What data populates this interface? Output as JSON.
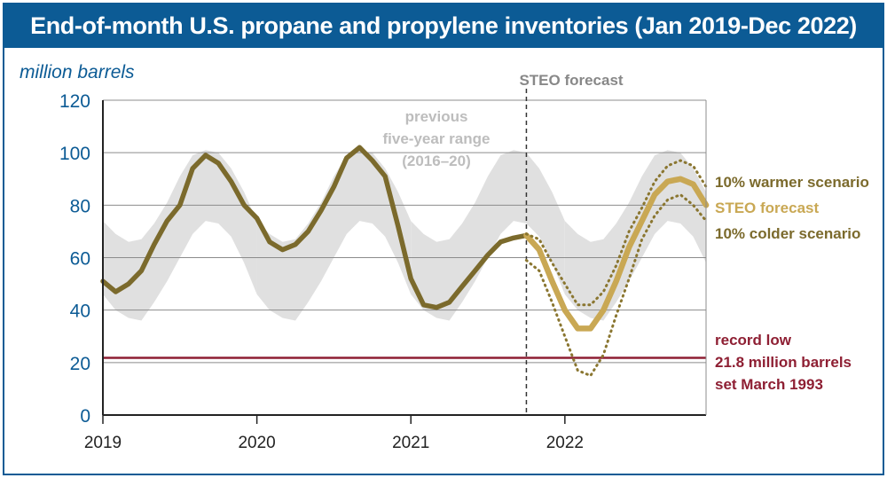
{
  "chart_data": {
    "type": "line",
    "title": "End-of-month U.S. propane and propylene inventories (Jan 2019-Dec 2022)",
    "ylabel": "million barrels",
    "xlabel": "",
    "ylim": [
      0,
      120
    ],
    "yticks": [
      "0",
      "20",
      "40",
      "60",
      "80",
      "100",
      "120"
    ],
    "xticks": [
      "2019",
      "2020",
      "2021",
      "2022"
    ],
    "xlim_years": [
      2019.0,
      2022.9167
    ],
    "grid": true,
    "series": [
      {
        "name": "",
        "role": "historical",
        "color": "#7b6a2c",
        "points": [
          [
            2019.0,
            51
          ],
          [
            2019.083,
            47
          ],
          [
            2019.167,
            50
          ],
          [
            2019.25,
            55
          ],
          [
            2019.333,
            65
          ],
          [
            2019.417,
            74
          ],
          [
            2019.5,
            80
          ],
          [
            2019.583,
            94
          ],
          [
            2019.667,
            99
          ],
          [
            2019.75,
            96
          ],
          [
            2019.833,
            89
          ],
          [
            2019.917,
            80
          ],
          [
            2020.0,
            75
          ],
          [
            2020.083,
            66
          ],
          [
            2020.167,
            63
          ],
          [
            2020.25,
            65
          ],
          [
            2020.333,
            70
          ],
          [
            2020.417,
            78
          ],
          [
            2020.5,
            87
          ],
          [
            2020.583,
            98
          ],
          [
            2020.667,
            102
          ],
          [
            2020.75,
            97
          ],
          [
            2020.833,
            91
          ],
          [
            2020.917,
            72
          ],
          [
            2021.0,
            52
          ],
          [
            2021.083,
            42
          ],
          [
            2021.167,
            41
          ],
          [
            2021.25,
            43
          ],
          [
            2021.333,
            49
          ],
          [
            2021.417,
            55
          ],
          [
            2021.5,
            61
          ],
          [
            2021.583,
            66
          ],
          [
            2021.667,
            67.5
          ],
          [
            2021.75,
            68.5
          ]
        ]
      },
      {
        "name": "STEO forecast",
        "role": "forecast",
        "color": "#c9a854",
        "points": [
          [
            2021.75,
            68.5
          ],
          [
            2021.833,
            63
          ],
          [
            2021.917,
            51
          ],
          [
            2022.0,
            40
          ],
          [
            2022.083,
            33
          ],
          [
            2022.167,
            33
          ],
          [
            2022.25,
            40
          ],
          [
            2022.333,
            51
          ],
          [
            2022.417,
            64
          ],
          [
            2022.5,
            74
          ],
          [
            2022.583,
            84
          ],
          [
            2022.667,
            89
          ],
          [
            2022.75,
            90
          ],
          [
            2022.833,
            88
          ],
          [
            2022.917,
            80
          ]
        ]
      },
      {
        "name": "10% warmer scenario",
        "role": "warmer",
        "color": "#8a7630",
        "points": [
          [
            2021.75,
            69
          ],
          [
            2021.833,
            67
          ],
          [
            2021.917,
            58
          ],
          [
            2022.0,
            50
          ],
          [
            2022.083,
            42
          ],
          [
            2022.167,
            42
          ],
          [
            2022.25,
            47
          ],
          [
            2022.333,
            57
          ],
          [
            2022.417,
            70
          ],
          [
            2022.5,
            79
          ],
          [
            2022.583,
            89
          ],
          [
            2022.667,
            95
          ],
          [
            2022.75,
            97
          ],
          [
            2022.833,
            95
          ],
          [
            2022.917,
            87
          ]
        ]
      },
      {
        "name": "10% colder scenario",
        "role": "colder",
        "color": "#8a7630",
        "points": [
          [
            2021.75,
            59
          ],
          [
            2021.833,
            55
          ],
          [
            2021.917,
            43
          ],
          [
            2022.0,
            30
          ],
          [
            2022.083,
            17
          ],
          [
            2022.167,
            15
          ],
          [
            2022.25,
            23
          ],
          [
            2022.333,
            38
          ],
          [
            2022.417,
            52
          ],
          [
            2022.5,
            67
          ],
          [
            2022.583,
            76
          ],
          [
            2022.667,
            82
          ],
          [
            2022.75,
            84
          ],
          [
            2022.833,
            80
          ],
          [
            2022.917,
            74
          ]
        ]
      }
    ],
    "range_band": {
      "label_lines": [
        "previous",
        "five-year range",
        "(2016–20)"
      ],
      "color": "#e0e0e0",
      "upper": [
        [
          2019.0,
          74
        ],
        [
          2019.083,
          69
        ],
        [
          2019.167,
          66
        ],
        [
          2019.25,
          67
        ],
        [
          2019.333,
          73
        ],
        [
          2019.417,
          81
        ],
        [
          2019.5,
          91
        ],
        [
          2019.583,
          99
        ],
        [
          2019.667,
          101
        ],
        [
          2019.75,
          100
        ],
        [
          2019.833,
          94
        ],
        [
          2019.917,
          85
        ],
        [
          2020.0,
          74
        ]
      ],
      "lower": [
        [
          2019.0,
          46
        ],
        [
          2019.083,
          40
        ],
        [
          2019.167,
          37
        ],
        [
          2019.25,
          36
        ],
        [
          2019.333,
          43
        ],
        [
          2019.417,
          51
        ],
        [
          2019.5,
          60
        ],
        [
          2019.583,
          69
        ],
        [
          2019.667,
          74
        ],
        [
          2019.75,
          73
        ],
        [
          2019.833,
          68
        ],
        [
          2019.917,
          58
        ],
        [
          2020.0,
          46
        ]
      ]
    },
    "reference_line": {
      "value": 21.8,
      "color": "#8e1f33",
      "label_lines": [
        "record low",
        "21.8 million barrels",
        "set March 1993"
      ]
    },
    "forecast_divider": {
      "x": 2021.75,
      "label": "STEO forecast"
    }
  }
}
